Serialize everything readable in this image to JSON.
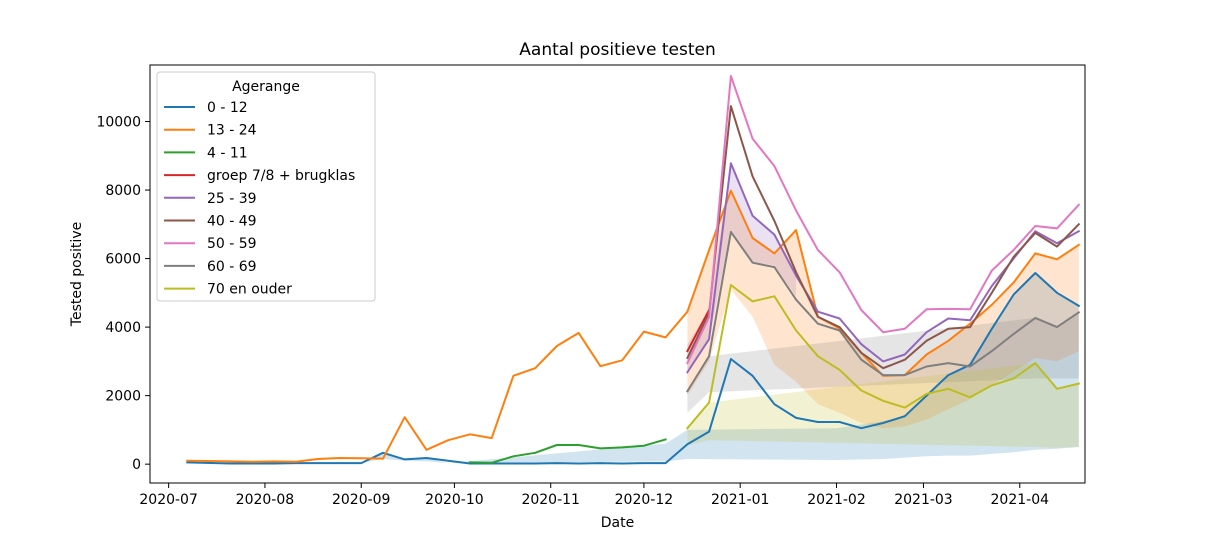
{
  "chart_data": {
    "type": "line",
    "title": "Aantal positieve testen",
    "xlabel": "Date",
    "ylabel": "Tested positive",
    "xlim": [
      "2020-06-25",
      "2021-04-22"
    ],
    "ylim": [
      -550,
      11650
    ],
    "x_ticks": [
      "2020-07",
      "2020-08",
      "2020-09",
      "2020-10",
      "2020-11",
      "2020-12",
      "2021-01",
      "2021-02",
      "2021-03",
      "2021-04"
    ],
    "y_ticks": [
      0,
      2000,
      4000,
      6000,
      8000,
      10000
    ],
    "legend": {
      "title": "Agerange",
      "position": "top-left"
    },
    "series": [
      {
        "name": "0 - 12",
        "color": "#1f77b4",
        "points": [
          [
            "2020-07-07",
            50
          ],
          [
            "2020-07-21",
            20
          ],
          [
            "2020-08-04",
            20
          ],
          [
            "2020-08-11",
            30
          ],
          [
            "2020-08-18",
            30
          ],
          [
            "2020-08-25",
            30
          ],
          [
            "2020-09-01",
            30
          ],
          [
            "2020-09-08",
            330
          ],
          [
            "2020-09-15",
            140
          ],
          [
            "2020-09-22",
            180
          ],
          [
            "2020-09-29",
            100
          ],
          [
            "2020-10-06",
            20
          ],
          [
            "2020-10-13",
            20
          ],
          [
            "2020-10-20",
            20
          ],
          [
            "2020-10-27",
            20
          ],
          [
            "2020-11-03",
            30
          ],
          [
            "2020-11-10",
            20
          ],
          [
            "2020-11-17",
            30
          ],
          [
            "2020-11-24",
            20
          ],
          [
            "2020-12-01",
            30
          ],
          [
            "2020-12-08",
            30
          ],
          [
            "2020-12-15",
            580
          ],
          [
            "2020-12-22",
            950
          ],
          [
            "2020-12-29",
            3070
          ],
          [
            "2021-01-05",
            2580
          ],
          [
            "2021-01-12",
            1750
          ],
          [
            "2021-01-19",
            1350
          ],
          [
            "2021-01-26",
            1230
          ],
          [
            "2021-02-02",
            1230
          ],
          [
            "2021-02-09",
            1050
          ],
          [
            "2021-02-16",
            1200
          ],
          [
            "2021-02-23",
            1400
          ],
          [
            "2021-03-02",
            2000
          ],
          [
            "2021-03-09",
            2600
          ],
          [
            "2021-03-16",
            2900
          ],
          [
            "2021-03-23",
            3950
          ],
          [
            "2021-03-30",
            4950
          ],
          [
            "2021-04-06",
            5580
          ],
          [
            "2021-04-13",
            5000
          ],
          [
            "2021-04-20",
            4620
          ]
        ],
        "band": [
          [
            "2020-09-01",
            40,
            40
          ],
          [
            "2020-09-08",
            150,
            300
          ],
          [
            "2020-09-15",
            100,
            150
          ],
          [
            "2020-09-22",
            80,
            180
          ],
          [
            "2020-09-29",
            30,
            30
          ],
          [
            "2020-12-08",
            80,
            600
          ],
          [
            "2020-12-15",
            150,
            1000
          ],
          [
            "2021-02-01",
            120,
            1050
          ],
          [
            "2021-02-16",
            150,
            1250
          ],
          [
            "2021-02-23",
            190,
            1400
          ],
          [
            "2021-03-02",
            230,
            2000
          ],
          [
            "2021-03-09",
            250,
            2600
          ],
          [
            "2021-03-16",
            250,
            2900
          ],
          [
            "2021-03-23",
            300,
            3950
          ],
          [
            "2021-03-30",
            350,
            4950
          ],
          [
            "2021-04-06",
            420,
            5580
          ],
          [
            "2021-04-13",
            450,
            5000
          ],
          [
            "2021-04-20",
            500,
            4620
          ]
        ]
      },
      {
        "name": "13 - 24",
        "color": "#ff7f0e",
        "points": [
          [
            "2020-07-07",
            100
          ],
          [
            "2020-07-21",
            80
          ],
          [
            "2020-07-28",
            70
          ],
          [
            "2020-08-04",
            80
          ],
          [
            "2020-08-11",
            70
          ],
          [
            "2020-08-18",
            150
          ],
          [
            "2020-08-25",
            180
          ],
          [
            "2020-09-01",
            170
          ],
          [
            "2020-09-08",
            160
          ],
          [
            "2020-09-15",
            1370
          ],
          [
            "2020-09-22",
            420
          ],
          [
            "2020-09-29",
            700
          ],
          [
            "2020-10-06",
            870
          ],
          [
            "2020-10-13",
            760
          ],
          [
            "2020-10-20",
            2580
          ],
          [
            "2020-10-27",
            2800
          ],
          [
            "2020-11-03",
            3450
          ],
          [
            "2020-11-10",
            3830
          ],
          [
            "2020-11-17",
            2860
          ],
          [
            "2020-11-24",
            3030
          ],
          [
            "2020-12-01",
            3870
          ],
          [
            "2020-12-08",
            3700
          ],
          [
            "2020-12-15",
            4450
          ],
          [
            "2020-12-22",
            6250
          ],
          [
            "2020-12-29",
            7980
          ],
          [
            "2021-01-05",
            6600
          ],
          [
            "2021-01-12",
            6150
          ],
          [
            "2021-01-19",
            6830
          ],
          [
            "2021-01-26",
            4300
          ],
          [
            "2021-02-02",
            3960
          ],
          [
            "2021-02-09",
            3250
          ],
          [
            "2021-02-16",
            2580
          ],
          [
            "2021-02-23",
            2600
          ],
          [
            "2021-03-02",
            3200
          ],
          [
            "2021-03-09",
            3600
          ],
          [
            "2021-03-16",
            4100
          ],
          [
            "2021-03-23",
            4650
          ],
          [
            "2021-03-30",
            5300
          ],
          [
            "2021-04-06",
            6150
          ],
          [
            "2021-04-13",
            5980
          ],
          [
            "2021-04-20",
            6400
          ]
        ],
        "band": [
          [
            "2020-12-15",
            2000,
            4450
          ],
          [
            "2020-12-22",
            3000,
            6250
          ],
          [
            "2020-12-29",
            5100,
            7980
          ],
          [
            "2021-01-05",
            4300,
            6600
          ],
          [
            "2021-01-12",
            2900,
            6150
          ],
          [
            "2021-01-19",
            2400,
            6830
          ],
          [
            "2021-01-26",
            1750,
            4300
          ],
          [
            "2021-02-02",
            1500,
            3960
          ],
          [
            "2021-02-09",
            1200,
            3250
          ],
          [
            "2021-02-16",
            1050,
            2580
          ],
          [
            "2021-02-23",
            1100,
            2600
          ],
          [
            "2021-03-02",
            1300,
            3200
          ],
          [
            "2021-03-09",
            1600,
            3600
          ],
          [
            "2021-03-16",
            1900,
            4100
          ],
          [
            "2021-03-23",
            2300,
            4650
          ],
          [
            "2021-03-30",
            2700,
            5300
          ],
          [
            "2021-04-06",
            3100,
            6150
          ],
          [
            "2021-04-13",
            3000,
            5980
          ],
          [
            "2021-04-20",
            3300,
            6400
          ]
        ]
      },
      {
        "name": "4 - 11",
        "color": "#2ca02c",
        "points": [
          [
            "2020-10-06",
            50
          ],
          [
            "2020-10-13",
            40
          ],
          [
            "2020-10-20",
            230
          ],
          [
            "2020-10-27",
            330
          ],
          [
            "2020-11-03",
            560
          ],
          [
            "2020-11-10",
            560
          ],
          [
            "2020-11-17",
            460
          ],
          [
            "2020-11-24",
            490
          ],
          [
            "2020-12-01",
            540
          ],
          [
            "2020-12-08",
            720
          ]
        ],
        "band": []
      },
      {
        "name": "groep 7/8 + brugklas",
        "color": "#d62728",
        "points": [
          [
            "2020-12-15",
            3300
          ],
          [
            "2020-12-22",
            4500
          ]
        ],
        "band": []
      },
      {
        "name": "25 - 39",
        "color": "#9467bd",
        "points": [
          [
            "2020-12-15",
            2680
          ],
          [
            "2020-12-22",
            3650
          ],
          [
            "2020-12-29",
            8780
          ],
          [
            "2021-01-05",
            7250
          ],
          [
            "2021-01-12",
            6700
          ],
          [
            "2021-01-19",
            5500
          ],
          [
            "2021-01-26",
            4450
          ],
          [
            "2021-02-02",
            4250
          ],
          [
            "2021-02-09",
            3500
          ],
          [
            "2021-02-16",
            3000
          ],
          [
            "2021-02-23",
            3200
          ],
          [
            "2021-03-02",
            3850
          ],
          [
            "2021-03-09",
            4250
          ],
          [
            "2021-03-16",
            4200
          ],
          [
            "2021-03-23",
            5200
          ],
          [
            "2021-03-30",
            6000
          ],
          [
            "2021-04-06",
            6800
          ],
          [
            "2021-04-13",
            6450
          ],
          [
            "2021-04-20",
            6800
          ]
        ],
        "band": [
          [
            "2020-12-15",
            2680,
            3500
          ],
          [
            "2020-12-22",
            3650,
            4500
          ],
          [
            "2020-12-29",
            6800,
            8780
          ],
          [
            "2021-01-05",
            5900,
            7250
          ],
          [
            "2021-01-12",
            5800,
            6700
          ],
          [
            "2021-01-19",
            4900,
            5500
          ]
        ]
      },
      {
        "name": "40 - 49",
        "color": "#8c564b",
        "points": [
          [
            "2020-12-15",
            3100
          ],
          [
            "2020-12-22",
            4400
          ],
          [
            "2020-12-29",
            10450
          ],
          [
            "2021-01-05",
            8400
          ],
          [
            "2021-01-12",
            7100
          ],
          [
            "2021-01-19",
            5600
          ],
          [
            "2021-01-26",
            4300
          ],
          [
            "2021-02-02",
            4000
          ],
          [
            "2021-02-09",
            3250
          ],
          [
            "2021-02-16",
            2800
          ],
          [
            "2021-02-23",
            3050
          ],
          [
            "2021-03-02",
            3600
          ],
          [
            "2021-03-09",
            3950
          ],
          [
            "2021-03-16",
            4000
          ],
          [
            "2021-03-23",
            5000
          ],
          [
            "2021-03-30",
            6050
          ],
          [
            "2021-04-06",
            6750
          ],
          [
            "2021-04-13",
            6350
          ],
          [
            "2021-04-20",
            7000
          ]
        ],
        "band": []
      },
      {
        "name": "50 - 59",
        "color": "#e377c2",
        "points": [
          [
            "2020-12-15",
            2950
          ],
          [
            "2020-12-22",
            4300
          ],
          [
            "2020-12-29",
            11330
          ],
          [
            "2021-01-05",
            9500
          ],
          [
            "2021-01-12",
            8700
          ],
          [
            "2021-01-19",
            7400
          ],
          [
            "2021-01-26",
            6250
          ],
          [
            "2021-02-02",
            5600
          ],
          [
            "2021-02-09",
            4500
          ],
          [
            "2021-02-16",
            3850
          ],
          [
            "2021-02-23",
            3950
          ],
          [
            "2021-03-02",
            4520
          ],
          [
            "2021-03-09",
            4530
          ],
          [
            "2021-03-16",
            4520
          ],
          [
            "2021-03-23",
            5650
          ],
          [
            "2021-03-30",
            6250
          ],
          [
            "2021-04-06",
            6950
          ],
          [
            "2021-04-13",
            6880
          ],
          [
            "2021-04-20",
            7570
          ]
        ],
        "band": []
      },
      {
        "name": "60 - 69",
        "color": "#7f7f7f",
        "points": [
          [
            "2020-12-15",
            2130
          ],
          [
            "2020-12-22",
            3150
          ],
          [
            "2020-12-29",
            6780
          ],
          [
            "2021-01-05",
            5880
          ],
          [
            "2021-01-12",
            5750
          ],
          [
            "2021-01-19",
            4800
          ],
          [
            "2021-01-26",
            4100
          ],
          [
            "2021-02-02",
            3900
          ],
          [
            "2021-02-09",
            3050
          ],
          [
            "2021-02-16",
            2600
          ],
          [
            "2021-02-23",
            2600
          ],
          [
            "2021-03-02",
            2850
          ],
          [
            "2021-03-09",
            2950
          ],
          [
            "2021-03-16",
            2850
          ],
          [
            "2021-03-23",
            3300
          ],
          [
            "2021-03-30",
            3800
          ],
          [
            "2021-04-06",
            4270
          ],
          [
            "2021-04-13",
            4000
          ],
          [
            "2021-04-20",
            4430
          ]
        ],
        "band": [
          [
            "2020-12-15",
            1500,
            2130
          ],
          [
            "2020-12-22",
            2100,
            3150
          ],
          [
            "2021-04-06",
            2500,
            4270
          ],
          [
            "2021-04-13",
            2500,
            4000
          ],
          [
            "2021-04-20",
            2500,
            4430
          ]
        ]
      },
      {
        "name": "70 en ouder",
        "color": "#bcbd22",
        "points": [
          [
            "2020-12-15",
            1050
          ],
          [
            "2020-12-22",
            1800
          ],
          [
            "2020-12-29",
            5230
          ],
          [
            "2021-01-05",
            4750
          ],
          [
            "2021-01-12",
            4900
          ],
          [
            "2021-01-19",
            3900
          ],
          [
            "2021-01-26",
            3150
          ],
          [
            "2021-02-02",
            2750
          ],
          [
            "2021-02-09",
            2150
          ],
          [
            "2021-02-16",
            1850
          ],
          [
            "2021-02-23",
            1650
          ],
          [
            "2021-03-02",
            2050
          ],
          [
            "2021-03-09",
            2200
          ],
          [
            "2021-03-16",
            1950
          ],
          [
            "2021-03-23",
            2300
          ],
          [
            "2021-03-30",
            2500
          ],
          [
            "2021-04-06",
            2950
          ],
          [
            "2021-04-13",
            2200
          ],
          [
            "2021-04-20",
            2350
          ]
        ],
        "band": [
          [
            "2020-12-15",
            550,
            1050
          ],
          [
            "2020-12-22",
            700,
            1800
          ],
          [
            "2021-04-06",
            500,
            2950
          ],
          [
            "2021-04-13",
            480,
            2200
          ],
          [
            "2021-04-20",
            500,
            2350
          ]
        ]
      }
    ]
  }
}
